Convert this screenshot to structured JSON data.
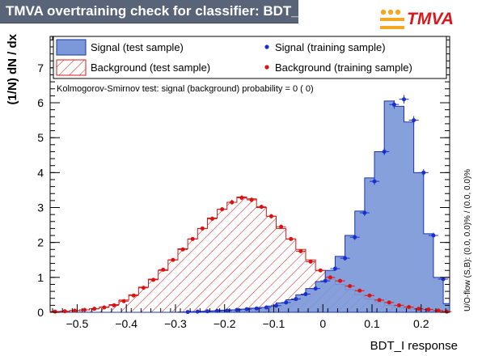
{
  "header": {
    "title": "TMVA overtraining check for classifier: BDT_I",
    "logo_text": "TMVA",
    "logo_accent": "#d8181c",
    "logo_dot_color": "#f5a623"
  },
  "chart_data": {
    "type": "histogram",
    "title": "TMVA overtraining check for classifier: BDT_I",
    "xlabel": "BDT_I response",
    "ylabel": "(1/N) dN / dx",
    "xlim": [
      -0.555,
      0.258
    ],
    "ylim": [
      0,
      7.9
    ],
    "x_ticks": [
      -0.5,
      -0.4,
      -0.3,
      -0.2,
      -0.1,
      0,
      0.1,
      0.2
    ],
    "x_tick_labels": [
      "−0.5",
      "−0.4",
      "−0.3",
      "−0.2",
      "−0.1",
      "0",
      "0.1",
      "0.2"
    ],
    "y_ticks": [
      0,
      1,
      2,
      3,
      4,
      5,
      6,
      7
    ],
    "y_tick_labels": [
      "0",
      "1",
      "2",
      "3",
      "4",
      "5",
      "6",
      "7"
    ],
    "bin_edges": [
      -0.555,
      -0.535,
      -0.515,
      -0.495,
      -0.475,
      -0.455,
      -0.435,
      -0.415,
      -0.395,
      -0.375,
      -0.355,
      -0.335,
      -0.315,
      -0.295,
      -0.275,
      -0.255,
      -0.235,
      -0.215,
      -0.195,
      -0.175,
      -0.155,
      -0.135,
      -0.115,
      -0.095,
      -0.075,
      -0.055,
      -0.035,
      -0.015,
      0.005,
      0.025,
      0.045,
      0.065,
      0.085,
      0.105,
      0.125,
      0.145,
      0.165,
      0.185,
      0.205,
      0.225,
      0.245,
      0.258
    ],
    "series": [
      {
        "name": "Signal (test sample)",
        "style": "filled histogram",
        "color": "#7b98d8",
        "line_color": "#1a36a8",
        "values": [
          0,
          0,
          0,
          0,
          0,
          0,
          0,
          0,
          0,
          0,
          0,
          0,
          0,
          0.01,
          0.02,
          0.03,
          0.04,
          0.06,
          0.07,
          0.09,
          0.12,
          0.14,
          0.18,
          0.27,
          0.36,
          0.5,
          0.68,
          0.88,
          1.2,
          1.6,
          2.2,
          2.9,
          3.85,
          4.6,
          6.05,
          5.9,
          5.45,
          4.0,
          2.25,
          1.0,
          0.25
        ]
      },
      {
        "name": "Background (test sample)",
        "style": "hatched histogram",
        "color": "#d01818",
        "values": [
          0.02,
          0.03,
          0.05,
          0.07,
          0.1,
          0.15,
          0.22,
          0.35,
          0.5,
          0.72,
          0.95,
          1.2,
          1.5,
          1.82,
          2.1,
          2.4,
          2.7,
          2.95,
          3.15,
          3.3,
          3.25,
          3.0,
          2.75,
          2.4,
          2.1,
          1.8,
          1.5,
          1.2,
          0.95,
          0.8,
          0.65,
          0.5,
          0.38,
          0.3,
          0.2,
          0.15,
          0.11,
          0.08,
          0.05,
          0.02,
          0.01
        ]
      },
      {
        "name": "Signal (training sample)",
        "style": "points with error bars",
        "color": "#1a2fd0",
        "x": [
          -0.275,
          -0.255,
          -0.235,
          -0.215,
          -0.195,
          -0.175,
          -0.155,
          -0.135,
          -0.115,
          -0.095,
          -0.075,
          -0.055,
          -0.035,
          -0.015,
          0.005,
          0.025,
          0.045,
          0.065,
          0.085,
          0.105,
          0.125,
          0.145,
          0.165,
          0.185,
          0.205,
          0.225,
          0.245
        ],
        "values": [
          0.01,
          0.02,
          0.03,
          0.04,
          0.05,
          0.07,
          0.09,
          0.11,
          0.14,
          0.19,
          0.28,
          0.38,
          0.52,
          0.68,
          0.9,
          1.25,
          1.55,
          2.15,
          2.85,
          3.75,
          4.6,
          5.95,
          6.1,
          5.5,
          4.0,
          2.2,
          0.95
        ],
        "errors": [
          0.01,
          0.01,
          0.01,
          0.01,
          0.01,
          0.02,
          0.02,
          0.02,
          0.02,
          0.03,
          0.03,
          0.04,
          0.04,
          0.05,
          0.05,
          0.06,
          0.07,
          0.08,
          0.09,
          0.1,
          0.1,
          0.12,
          0.12,
          0.12,
          0.1,
          0.08,
          0.05
        ]
      },
      {
        "name": "Background (training sample)",
        "style": "points with error bars",
        "color": "#e01010",
        "x": [
          -0.545,
          -0.525,
          -0.505,
          -0.485,
          -0.465,
          -0.445,
          -0.425,
          -0.405,
          -0.385,
          -0.365,
          -0.345,
          -0.325,
          -0.305,
          -0.285,
          -0.265,
          -0.245,
          -0.225,
          -0.205,
          -0.185,
          -0.165,
          -0.145,
          -0.125,
          -0.105,
          -0.085,
          -0.065,
          -0.045,
          -0.025,
          -0.005,
          0.015,
          0.035,
          0.055,
          0.075,
          0.095,
          0.115,
          0.135,
          0.155,
          0.175,
          0.195,
          0.215,
          0.235,
          0.252
        ],
        "values": [
          0.02,
          0.03,
          0.05,
          0.07,
          0.1,
          0.14,
          0.2,
          0.32,
          0.48,
          0.7,
          0.93,
          1.22,
          1.5,
          1.8,
          2.1,
          2.4,
          2.68,
          2.95,
          3.15,
          3.28,
          3.22,
          3.02,
          2.75,
          2.45,
          2.1,
          1.75,
          1.45,
          1.2,
          1.0,
          0.9,
          0.75,
          0.62,
          0.48,
          0.35,
          0.28,
          0.2,
          0.15,
          0.1,
          0.08,
          0.05,
          0.02
        ],
        "errors": [
          0.005,
          0.005,
          0.01,
          0.01,
          0.01,
          0.02,
          0.02,
          0.02,
          0.03,
          0.03,
          0.04,
          0.04,
          0.05,
          0.05,
          0.05,
          0.06,
          0.06,
          0.06,
          0.07,
          0.07,
          0.07,
          0.06,
          0.06,
          0.06,
          0.05,
          0.05,
          0.05,
          0.04,
          0.04,
          0.04,
          0.03,
          0.03,
          0.03,
          0.02,
          0.02,
          0.02,
          0.02,
          0.01,
          0.01,
          0.01,
          0.01
        ]
      }
    ],
    "legend": {
      "placement": "top",
      "entries": [
        "Signal (test sample)",
        "Background (test sample)",
        "Signal (training sample)",
        "Background (training sample)"
      ]
    },
    "ks_text": "Kolmogorov-Smirnov test: signal (background) probability =     0 (    0)",
    "overflow_text": "U/O-flow (S,B): (0.0, 0.0)% / (0.0, 0.0)%"
  }
}
